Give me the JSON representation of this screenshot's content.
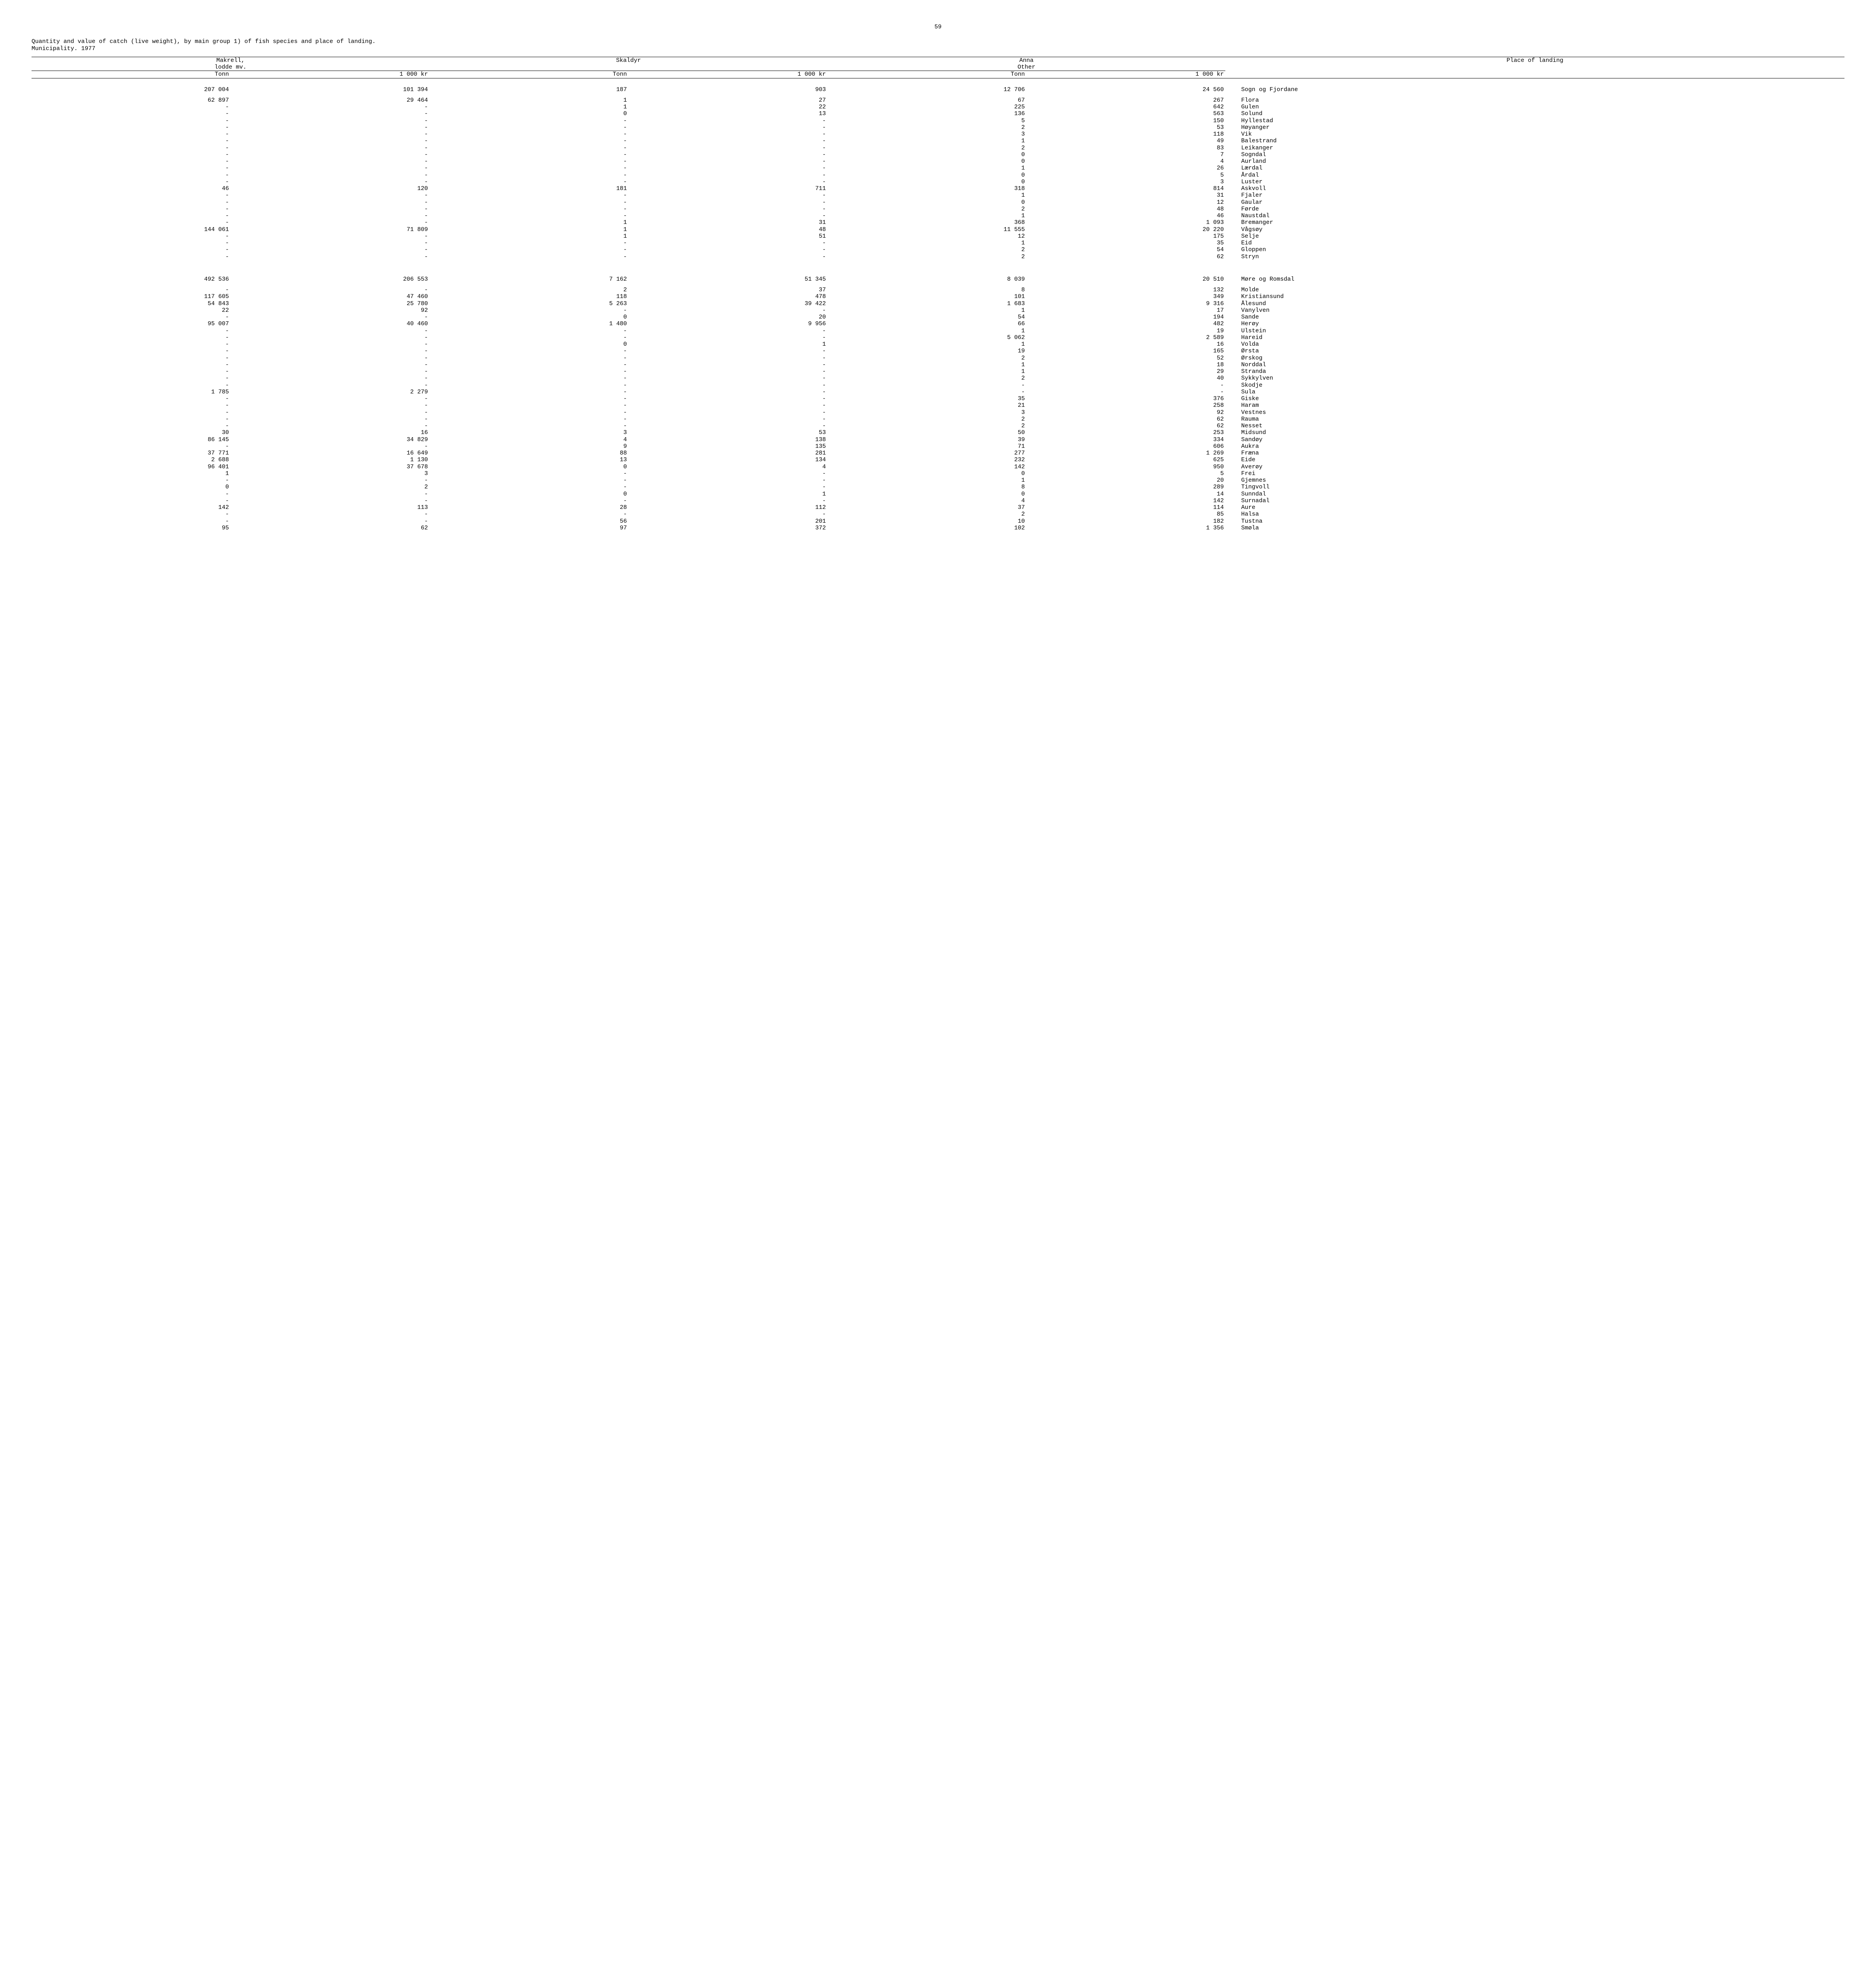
{
  "page_number": "59",
  "title_line1": "Quantity and value of catch (live weight), by main group 1) of fish species and place of landing.",
  "title_line2": "Municipality.  1977",
  "header": {
    "group1_a": "Makrell,",
    "group1_b": "lodde mv.",
    "group2": "Skaldyr",
    "group3_a": "Anna",
    "group3_b": "Other",
    "group4": "Place of landing",
    "tonn": "Tonn",
    "kr": "1 000 kr"
  },
  "sections": [
    {
      "total": {
        "c1": "207 004",
        "c2": "101 394",
        "c3": "187",
        "c4": "903",
        "c5": "12 706",
        "c6": "24 560",
        "place": "Sogn og Fjordane"
      },
      "rows": [
        {
          "c1": "62 897",
          "c2": "29 464",
          "c3": "1",
          "c4": "27",
          "c5": "67",
          "c6": "267",
          "place": "Flora"
        },
        {
          "c1": "-",
          "c2": "-",
          "c3": "1",
          "c4": "22",
          "c5": "225",
          "c6": "642",
          "place": "Gulen"
        },
        {
          "c1": "-",
          "c2": "-",
          "c3": "0",
          "c4": "13",
          "c5": "136",
          "c6": "563",
          "place": "Solund"
        },
        {
          "c1": "-",
          "c2": "-",
          "c3": "-",
          "c4": "-",
          "c5": "5",
          "c6": "150",
          "place": "Hyllestad"
        },
        {
          "c1": "-",
          "c2": "-",
          "c3": "-",
          "c4": "-",
          "c5": "2",
          "c6": "53",
          "place": "Høyanger"
        },
        {
          "c1": "-",
          "c2": "-",
          "c3": "-",
          "c4": "-",
          "c5": "3",
          "c6": "118",
          "place": "Vik"
        },
        {
          "c1": "-",
          "c2": "-",
          "c3": "-",
          "c4": "-",
          "c5": "1",
          "c6": "49",
          "place": "Balestrand"
        },
        {
          "c1": "-",
          "c2": "-",
          "c3": "-",
          "c4": "-",
          "c5": "2",
          "c6": "83",
          "place": "Leikanger"
        },
        {
          "c1": "-",
          "c2": "-",
          "c3": "-",
          "c4": "-",
          "c5": "0",
          "c6": "7",
          "place": "Sogndal"
        },
        {
          "c1": "-",
          "c2": "-",
          "c3": "-",
          "c4": "-",
          "c5": "0",
          "c6": "4",
          "place": "Aurland"
        },
        {
          "c1": "-",
          "c2": "-",
          "c3": "-",
          "c4": "-",
          "c5": "1",
          "c6": "26",
          "place": "Lærdal"
        },
        {
          "c1": "-",
          "c2": "-",
          "c3": "-",
          "c4": "-",
          "c5": "0",
          "c6": "5",
          "place": "Årdal"
        },
        {
          "c1": "-",
          "c2": "-",
          "c3": "-",
          "c4": "-",
          "c5": "0",
          "c6": "3",
          "place": "Luster"
        },
        {
          "c1": "46",
          "c2": "120",
          "c3": "181",
          "c4": "711",
          "c5": "318",
          "c6": "814",
          "place": "Askvoll"
        },
        {
          "c1": "-",
          "c2": "-",
          "c3": "-",
          "c4": "-",
          "c5": "1",
          "c6": "31",
          "place": "Fjaler"
        },
        {
          "c1": "-",
          "c2": "-",
          "c3": "-",
          "c4": "-",
          "c5": "0",
          "c6": "12",
          "place": "Gaular"
        },
        {
          "c1": "-",
          "c2": "-",
          "c3": "-",
          "c4": "-",
          "c5": "2",
          "c6": "48",
          "place": "Førde"
        },
        {
          "c1": "-",
          "c2": "-",
          "c3": "-",
          "c4": "-",
          "c5": "1",
          "c6": "46",
          "place": "Naustdal"
        },
        {
          "c1": "-",
          "c2": "-",
          "c3": "1",
          "c4": "31",
          "c5": "368",
          "c6": "1 093",
          "place": "Bremanger"
        },
        {
          "c1": "144 061",
          "c2": "71 809",
          "c3": "1",
          "c4": "48",
          "c5": "11 555",
          "c6": "20 220",
          "place": "Vågsøy"
        },
        {
          "c1": "-",
          "c2": "-",
          "c3": "1",
          "c4": "51",
          "c5": "12",
          "c6": "175",
          "place": "Selje"
        },
        {
          "c1": "-",
          "c2": "-",
          "c3": "-",
          "c4": "-",
          "c5": "1",
          "c6": "35",
          "place": "Eid"
        },
        {
          "c1": "-",
          "c2": "-",
          "c3": "-",
          "c4": "-",
          "c5": "2",
          "c6": "54",
          "place": "Gloppen"
        },
        {
          "c1": "-",
          "c2": "-",
          "c3": "-",
          "c4": "-",
          "c5": "2",
          "c6": "62",
          "place": "Stryn"
        }
      ]
    },
    {
      "total": {
        "c1": "492 536",
        "c2": "206 553",
        "c3": "7 162",
        "c4": "51 345",
        "c5": "8 039",
        "c6": "20 510",
        "place": "Møre og Romsdal"
      },
      "rows": [
        {
          "c1": "-",
          "c2": "-",
          "c3": "2",
          "c4": "37",
          "c5": "8",
          "c6": "132",
          "place": "Molde"
        },
        {
          "c1": "117 605",
          "c2": "47 460",
          "c3": "118",
          "c4": "478",
          "c5": "101",
          "c6": "349",
          "place": "Kristiansund"
        },
        {
          "c1": "54 843",
          "c2": "25 780",
          "c3": "5 263",
          "c4": "39 422",
          "c5": "1 683",
          "c6": "9 316",
          "place": "Ålesund"
        },
        {
          "c1": "22",
          "c2": "92",
          "c3": "-",
          "c4": "-",
          "c5": "1",
          "c6": "17",
          "place": "Vanylven"
        },
        {
          "c1": "-",
          "c2": "-",
          "c3": "0",
          "c4": "20",
          "c5": "54",
          "c6": "194",
          "place": "Sande"
        },
        {
          "c1": "95 007",
          "c2": "40 460",
          "c3": "1 480",
          "c4": "9 956",
          "c5": "66",
          "c6": "482",
          "place": "Herøy"
        },
        {
          "c1": "-",
          "c2": "-",
          "c3": "-",
          "c4": "-",
          "c5": "1",
          "c6": "19",
          "place": "Ulstein"
        },
        {
          "c1": "-",
          "c2": "-",
          "c3": "-",
          "c4": "-",
          "c5": "5 062",
          "c6": "2 589",
          "place": "Hareid"
        },
        {
          "c1": "-",
          "c2": "-",
          "c3": "0",
          "c4": "1",
          "c5": "1",
          "c6": "16",
          "place": "Volda"
        },
        {
          "c1": "-",
          "c2": "-",
          "c3": "-",
          "c4": "-",
          "c5": "19",
          "c6": "165",
          "place": "Ørsta"
        },
        {
          "c1": "-",
          "c2": "-",
          "c3": "-",
          "c4": "-",
          "c5": "2",
          "c6": "52",
          "place": "Ørskog"
        },
        {
          "c1": "-",
          "c2": "-",
          "c3": "-",
          "c4": "-",
          "c5": "1",
          "c6": "18",
          "place": "Norddal"
        },
        {
          "c1": "-",
          "c2": "-",
          "c3": "-",
          "c4": "-",
          "c5": "1",
          "c6": "29",
          "place": "Stranda"
        },
        {
          "c1": "-",
          "c2": "-",
          "c3": "-",
          "c4": "-",
          "c5": "2",
          "c6": "40",
          "place": "Sykkylven"
        },
        {
          "c1": "-",
          "c2": "-",
          "c3": "-",
          "c4": "-",
          "c5": "-",
          "c6": "-",
          "place": "Skodje"
        },
        {
          "c1": "1 785",
          "c2": "2 279",
          "c3": "-",
          "c4": "-",
          "c5": "-",
          "c6": "-",
          "place": "Sula"
        },
        {
          "c1": "-",
          "c2": "-",
          "c3": "-",
          "c4": "-",
          "c5": "35",
          "c6": "376",
          "place": "Giske"
        },
        {
          "c1": "-",
          "c2": "-",
          "c3": "-",
          "c4": "-",
          "c5": "21",
          "c6": "258",
          "place": "Haram"
        },
        {
          "c1": "-",
          "c2": "-",
          "c3": "-",
          "c4": "-",
          "c5": "3",
          "c6": "92",
          "place": "Vestnes"
        },
        {
          "c1": "-",
          "c2": "-",
          "c3": "-",
          "c4": "-",
          "c5": "2",
          "c6": "62",
          "place": "Rauma"
        },
        {
          "c1": "-",
          "c2": "-",
          "c3": "-",
          "c4": "-",
          "c5": "2",
          "c6": "62",
          "place": "Nesset"
        },
        {
          "c1": "30",
          "c2": "16",
          "c3": "3",
          "c4": "53",
          "c5": "50",
          "c6": "253",
          "place": "Midsund"
        },
        {
          "c1": "86 145",
          "c2": "34 829",
          "c3": "4",
          "c4": "138",
          "c5": "39",
          "c6": "334",
          "place": "Sandøy"
        },
        {
          "c1": "-",
          "c2": "-",
          "c3": "9",
          "c4": "135",
          "c5": "71",
          "c6": "606",
          "place": "Aukra"
        },
        {
          "c1": "37 771",
          "c2": "16 649",
          "c3": "88",
          "c4": "281",
          "c5": "277",
          "c6": "1 269",
          "place": "Fræna"
        },
        {
          "c1": "2 688",
          "c2": "1 130",
          "c3": "13",
          "c4": "134",
          "c5": "232",
          "c6": "625",
          "place": "Eide"
        },
        {
          "c1": "96 401",
          "c2": "37 678",
          "c3": "0",
          "c4": "4",
          "c5": "142",
          "c6": "950",
          "place": "Averøy"
        },
        {
          "c1": "1",
          "c2": "3",
          "c3": "-",
          "c4": "-",
          "c5": "0",
          "c6": "5",
          "place": "Frei"
        },
        {
          "c1": "-",
          "c2": "-",
          "c3": "-",
          "c4": "-",
          "c5": "1",
          "c6": "20",
          "place": "Gjemnes"
        },
        {
          "c1": "0",
          "c2": "2",
          "c3": "-",
          "c4": "-",
          "c5": "8",
          "c6": "289",
          "place": "Tingvoll"
        },
        {
          "c1": "-",
          "c2": "-",
          "c3": "0",
          "c4": "1",
          "c5": "0",
          "c6": "14",
          "place": "Sunndal"
        },
        {
          "c1": "-",
          "c2": "-",
          "c3": "-",
          "c4": "-",
          "c5": "4",
          "c6": "142",
          "place": "Surnadal"
        },
        {
          "c1": "142",
          "c2": "113",
          "c3": "28",
          "c4": "112",
          "c5": "37",
          "c6": "114",
          "place": "Aure"
        },
        {
          "c1": "-",
          "c2": "-",
          "c3": "-",
          "c4": "-",
          "c5": "2",
          "c6": "85",
          "place": "Halsa"
        },
        {
          "c1": "-",
          "c2": "-",
          "c3": "56",
          "c4": "201",
          "c5": "10",
          "c6": "182",
          "place": "Tustna"
        },
        {
          "c1": "95",
          "c2": "62",
          "c3": "97",
          "c4": "372",
          "c5": "102",
          "c6": "1 356",
          "place": "Smøla"
        }
      ]
    }
  ]
}
